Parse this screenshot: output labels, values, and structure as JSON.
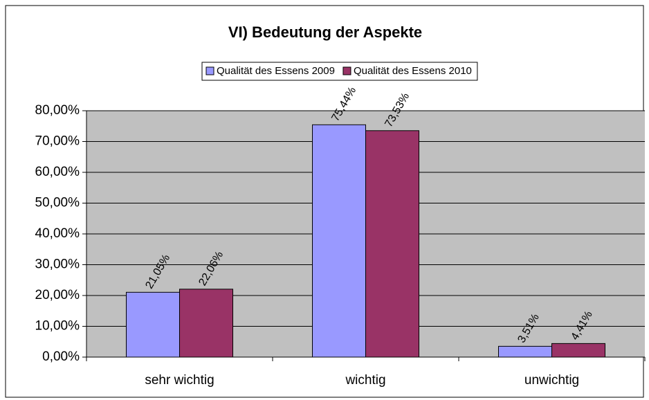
{
  "chart_data": {
    "type": "bar",
    "title": "VI) Bedeutung der Aspekte",
    "categories": [
      "sehr wichtig",
      "wichtig",
      "unwichtig"
    ],
    "series": [
      {
        "name": "Qualität des Essens 2009",
        "color": "#9999ff",
        "values": [
          21.05,
          75.44,
          3.51
        ],
        "value_labels": [
          "21,05%",
          "75,44%",
          "3,51%"
        ]
      },
      {
        "name": "Qualität des Essens 2010",
        "color": "#993366",
        "values": [
          22.06,
          73.53,
          4.41
        ],
        "value_labels": [
          "22,06%",
          "73,53%",
          "4,41%"
        ]
      }
    ],
    "ylim": [
      0,
      80
    ],
    "yticks": [
      {
        "value": 0,
        "label": "0,00%"
      },
      {
        "value": 10,
        "label": "10,00%"
      },
      {
        "value": 20,
        "label": "20,00%"
      },
      {
        "value": 30,
        "label": "30,00%"
      },
      {
        "value": 40,
        "label": "40,00%"
      },
      {
        "value": 50,
        "label": "50,00%"
      },
      {
        "value": 60,
        "label": "60,00%"
      },
      {
        "value": 70,
        "label": "70,00%"
      },
      {
        "value": 80,
        "label": "80,00%"
      }
    ],
    "grid": true,
    "legend": "top"
  }
}
